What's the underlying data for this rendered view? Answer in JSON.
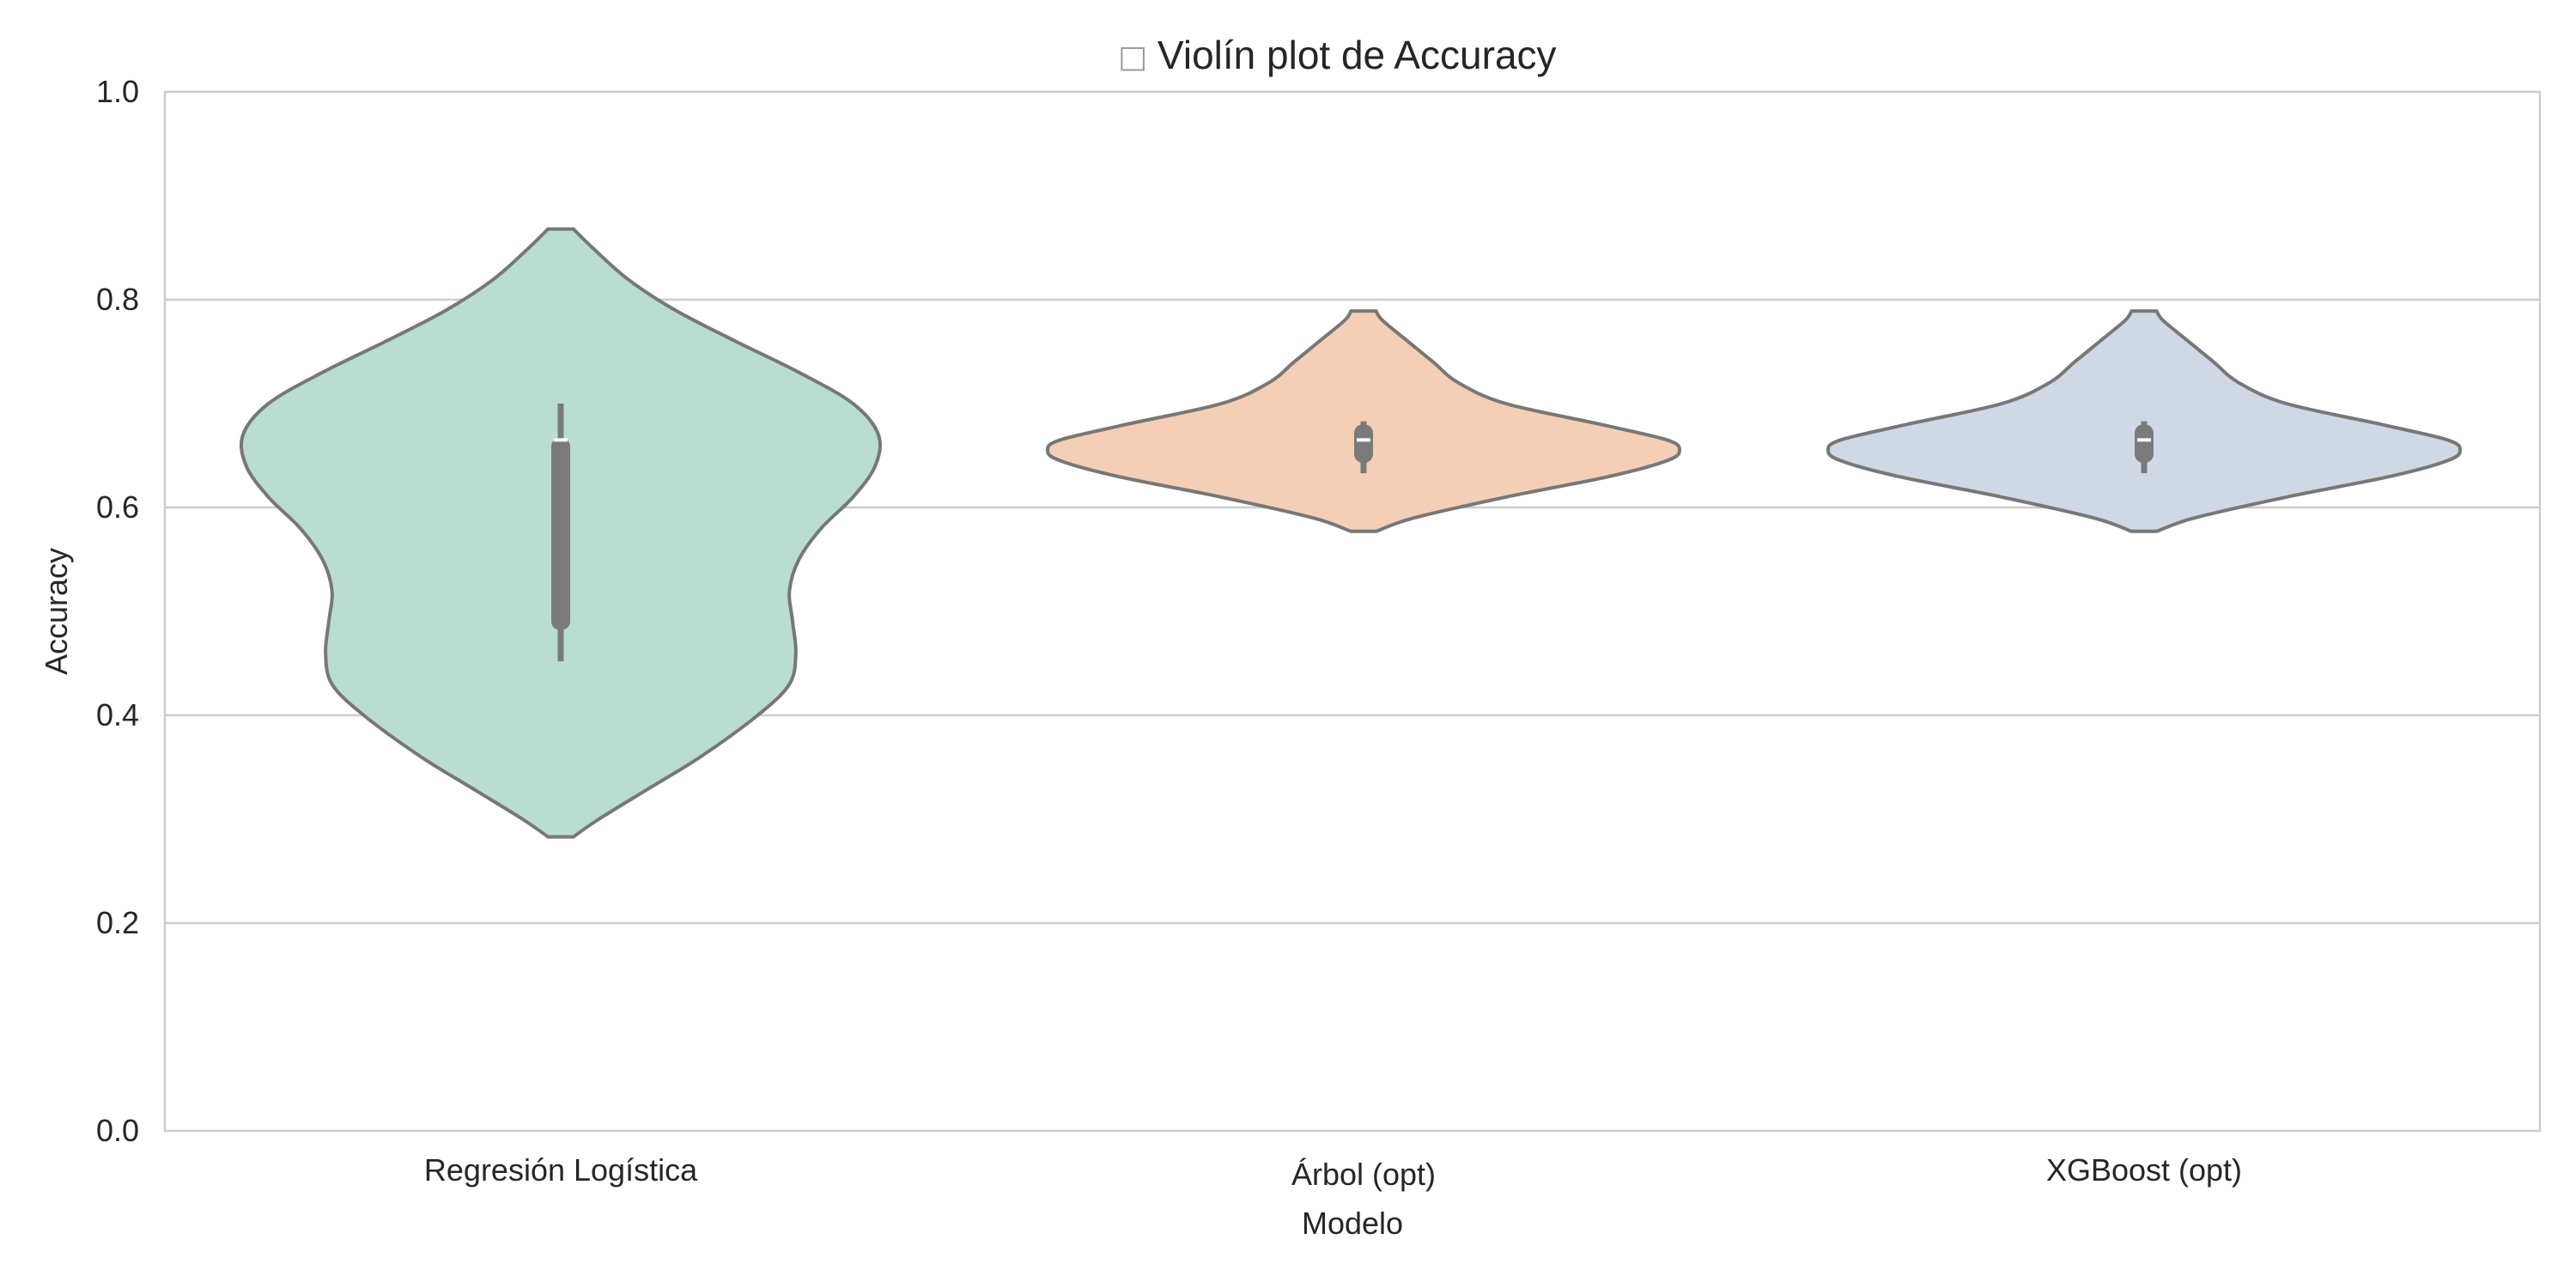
{
  "chart_data": {
    "type": "violin",
    "title": "Violín plot de Accuracy",
    "title_glyph": "□",
    "xlabel": "Modelo",
    "ylabel": "Accuracy",
    "ylim": [
      0.0,
      1.0
    ],
    "yticks": [
      "0.0",
      "0.2",
      "0.4",
      "0.6",
      "0.8",
      "1.0"
    ],
    "grid": true,
    "categories": [
      "Regresión Logística",
      "Árbol (opt)",
      "XGBoost (opt)"
    ],
    "series": [
      {
        "category": "Regresión Logística",
        "color": "#b9ddd0",
        "min": 0.283,
        "max": 0.868,
        "whisker_low": 0.452,
        "whisker_high": 0.7,
        "q1": 0.482,
        "median": 0.665,
        "q3": 0.667,
        "density": [
          [
            0.283,
            0.04
          ],
          [
            0.3,
            0.12
          ],
          [
            0.33,
            0.28
          ],
          [
            0.36,
            0.44
          ],
          [
            0.4,
            0.62
          ],
          [
            0.43,
            0.72
          ],
          [
            0.46,
            0.74
          ],
          [
            0.49,
            0.73
          ],
          [
            0.52,
            0.72
          ],
          [
            0.55,
            0.75
          ],
          [
            0.58,
            0.82
          ],
          [
            0.61,
            0.92
          ],
          [
            0.64,
            0.99
          ],
          [
            0.67,
            1.0
          ],
          [
            0.7,
            0.92
          ],
          [
            0.73,
            0.75
          ],
          [
            0.76,
            0.55
          ],
          [
            0.79,
            0.36
          ],
          [
            0.82,
            0.21
          ],
          [
            0.85,
            0.1
          ],
          [
            0.868,
            0.04
          ]
        ]
      },
      {
        "category": "Árbol (opt)",
        "color": "#f4cfb5",
        "min": 0.577,
        "max": 0.789,
        "whisker_low": 0.633,
        "whisker_high": 0.683,
        "q1": 0.643,
        "median": 0.665,
        "q3": 0.68,
        "density": [
          [
            0.577,
            0.04
          ],
          [
            0.59,
            0.16
          ],
          [
            0.61,
            0.45
          ],
          [
            0.63,
            0.78
          ],
          [
            0.645,
            0.96
          ],
          [
            0.655,
            1.0
          ],
          [
            0.665,
            0.96
          ],
          [
            0.68,
            0.75
          ],
          [
            0.7,
            0.45
          ],
          [
            0.72,
            0.3
          ],
          [
            0.74,
            0.22
          ],
          [
            0.76,
            0.14
          ],
          [
            0.78,
            0.06
          ],
          [
            0.789,
            0.04
          ]
        ]
      },
      {
        "category": "XGBoost (opt)",
        "color": "#d0d8e5",
        "min": 0.577,
        "max": 0.789,
        "whisker_low": 0.633,
        "whisker_high": 0.683,
        "q1": 0.643,
        "median": 0.665,
        "q3": 0.68,
        "density": [
          [
            0.577,
            0.04
          ],
          [
            0.59,
            0.16
          ],
          [
            0.61,
            0.45
          ],
          [
            0.63,
            0.78
          ],
          [
            0.645,
            0.96
          ],
          [
            0.655,
            1.0
          ],
          [
            0.665,
            0.96
          ],
          [
            0.68,
            0.75
          ],
          [
            0.7,
            0.45
          ],
          [
            0.72,
            0.3
          ],
          [
            0.74,
            0.22
          ],
          [
            0.76,
            0.14
          ],
          [
            0.78,
            0.06
          ],
          [
            0.789,
            0.04
          ]
        ]
      }
    ]
  }
}
